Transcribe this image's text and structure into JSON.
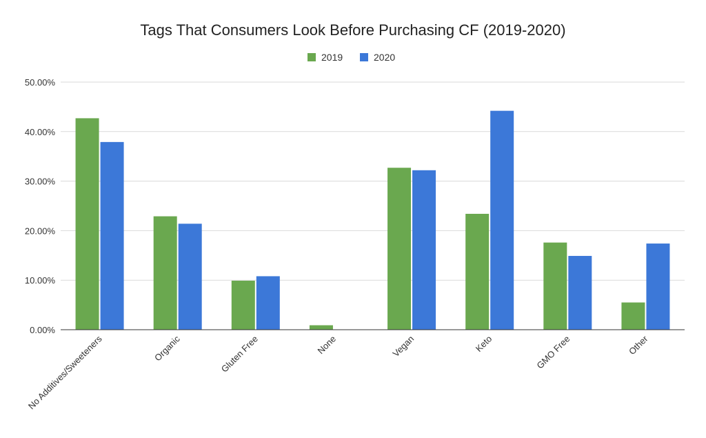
{
  "chart_data": {
    "type": "bar",
    "title": "Tags That Consumers Look Before Purchasing CF (2019-2020)",
    "xlabel": "",
    "ylabel": "",
    "categories": [
      "No Additives/Sweeteners",
      "Organic",
      "Gluten Free",
      "None",
      "Vegan",
      "Keto",
      "GMO Free",
      "Other"
    ],
    "series": [
      {
        "name": "2019",
        "color": "#6aa84f",
        "values": [
          42.7,
          22.9,
          9.9,
          0.9,
          32.7,
          23.4,
          17.6,
          5.5
        ]
      },
      {
        "name": "2020",
        "color": "#3c78d8",
        "values": [
          37.9,
          21.4,
          10.8,
          0,
          32.2,
          44.2,
          14.9,
          17.4
        ]
      }
    ],
    "ylim": [
      0,
      50
    ],
    "yticks": [
      "0.00%",
      "10.00%",
      "20.00%",
      "30.00%",
      "40.00%",
      "50.00%"
    ],
    "grid": true,
    "legend_position": "top"
  }
}
